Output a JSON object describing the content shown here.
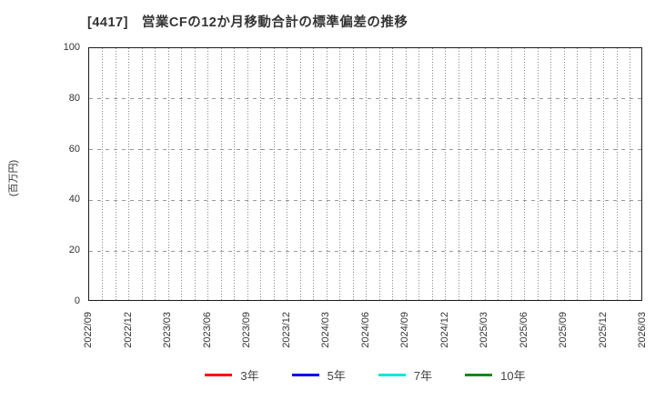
{
  "title": "[4417]　営業CFの12か月移動合計の標準偏差の推移",
  "y_axis": {
    "label": "(百万円)",
    "ticks": [
      0,
      20,
      40,
      60,
      80,
      100
    ],
    "range": [
      0,
      100
    ]
  },
  "x_axis": {
    "tick_labels": [
      "2022/09",
      "2022/12",
      "2023/03",
      "2023/06",
      "2023/09",
      "2023/12",
      "2024/03",
      "2024/06",
      "2024/09",
      "2024/12",
      "2025/03",
      "2025/06",
      "2025/09",
      "2025/12",
      "2026/03"
    ],
    "minor_divisions_per_interval": 3
  },
  "legend": {
    "items": [
      {
        "label": "3年",
        "color": "#ff0000"
      },
      {
        "label": "5年",
        "color": "#0000ee"
      },
      {
        "label": "7年",
        "color": "#00e5e5"
      },
      {
        "label": "10年",
        "color": "#0a8a0a"
      }
    ]
  },
  "chart_data": {
    "type": "line",
    "title": "[4417]　営業CFの12か月移動合計の標準偏差の推移",
    "xlabel": "",
    "ylabel": "(百万円)",
    "ylim": [
      0,
      100
    ],
    "yticks": [
      0,
      20,
      40,
      60,
      80,
      100
    ],
    "x": [
      "2022/09",
      "2022/12",
      "2023/03",
      "2023/06",
      "2023/09",
      "2023/12",
      "2024/03",
      "2024/06",
      "2024/09",
      "2024/12",
      "2025/03",
      "2025/06",
      "2025/09",
      "2025/12",
      "2026/03"
    ],
    "grid": true,
    "grid_style": {
      "vertical": "dotted-monthly",
      "horizontal": "dashed-major"
    },
    "legend_position": "bottom",
    "series": [
      {
        "name": "3年",
        "color": "#ff0000",
        "values": []
      },
      {
        "name": "5年",
        "color": "#0000ee",
        "values": []
      },
      {
        "name": "7年",
        "color": "#00e5e5",
        "values": []
      },
      {
        "name": "10年",
        "color": "#0a8a0a",
        "values": []
      }
    ]
  }
}
